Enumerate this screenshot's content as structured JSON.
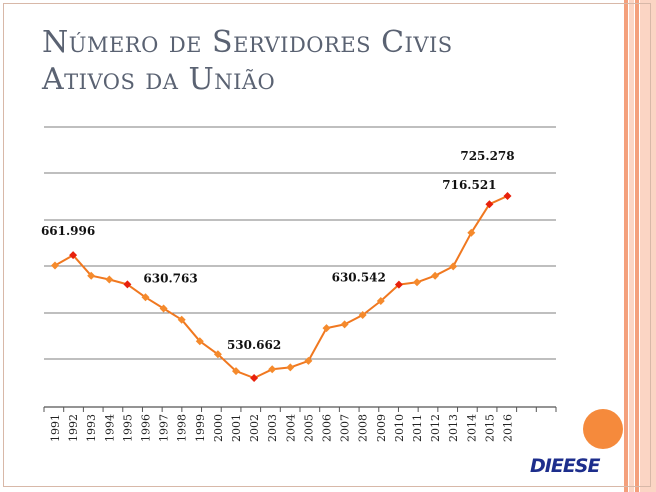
{
  "slide": {
    "title_line1": "Número de Servidores Civis",
    "title_line2": "Ativos da União",
    "logo_text": "DIEESE"
  },
  "colors": {
    "line": "#F07820",
    "marker": "#F58A2C",
    "highlight_marker": "#E8210C",
    "grid": "#7f7f7f",
    "title": "#5a6272",
    "stripe_dark": "#f4a07c",
    "stripe_light": "#fbd5c4",
    "circle": "#f58a3c",
    "logo": "#1d2e8c"
  },
  "chart_data": {
    "type": "line",
    "title": "",
    "xlabel": "",
    "ylabel": "",
    "categories": [
      "1991",
      "1992",
      "1993",
      "1994",
      "1995",
      "1996",
      "1997",
      "1998",
      "1999",
      "2000",
      "2001",
      "2002",
      "2003",
      "2004",
      "2005",
      "2006",
      "2007",
      "2008",
      "2009",
      "2010",
      "2011",
      "2012",
      "2013",
      "2014",
      "2015",
      "2016"
    ],
    "series": [
      {
        "values": [
          651000,
          661996,
          640000,
          636000,
          630763,
          617000,
          605000,
          593000,
          570000,
          556000,
          538000,
          530662,
          540000,
          542000,
          549000,
          584000,
          588000,
          598000,
          613000,
          630542,
          633000,
          640000,
          650000,
          686000,
          716521,
          725278
        ]
      }
    ],
    "highlight_indices": [
      1,
      4,
      11,
      19,
      24,
      25
    ],
    "data_labels": [
      {
        "index": 1,
        "text": "661.996"
      },
      {
        "index": 4,
        "text": "630.763"
      },
      {
        "index": 11,
        "text": "530.662"
      },
      {
        "index": 19,
        "text": "630.542"
      },
      {
        "index": 24,
        "text": "716.521"
      },
      {
        "index": 25,
        "text": "725.278"
      }
    ],
    "grid": true,
    "legend": "none"
  }
}
